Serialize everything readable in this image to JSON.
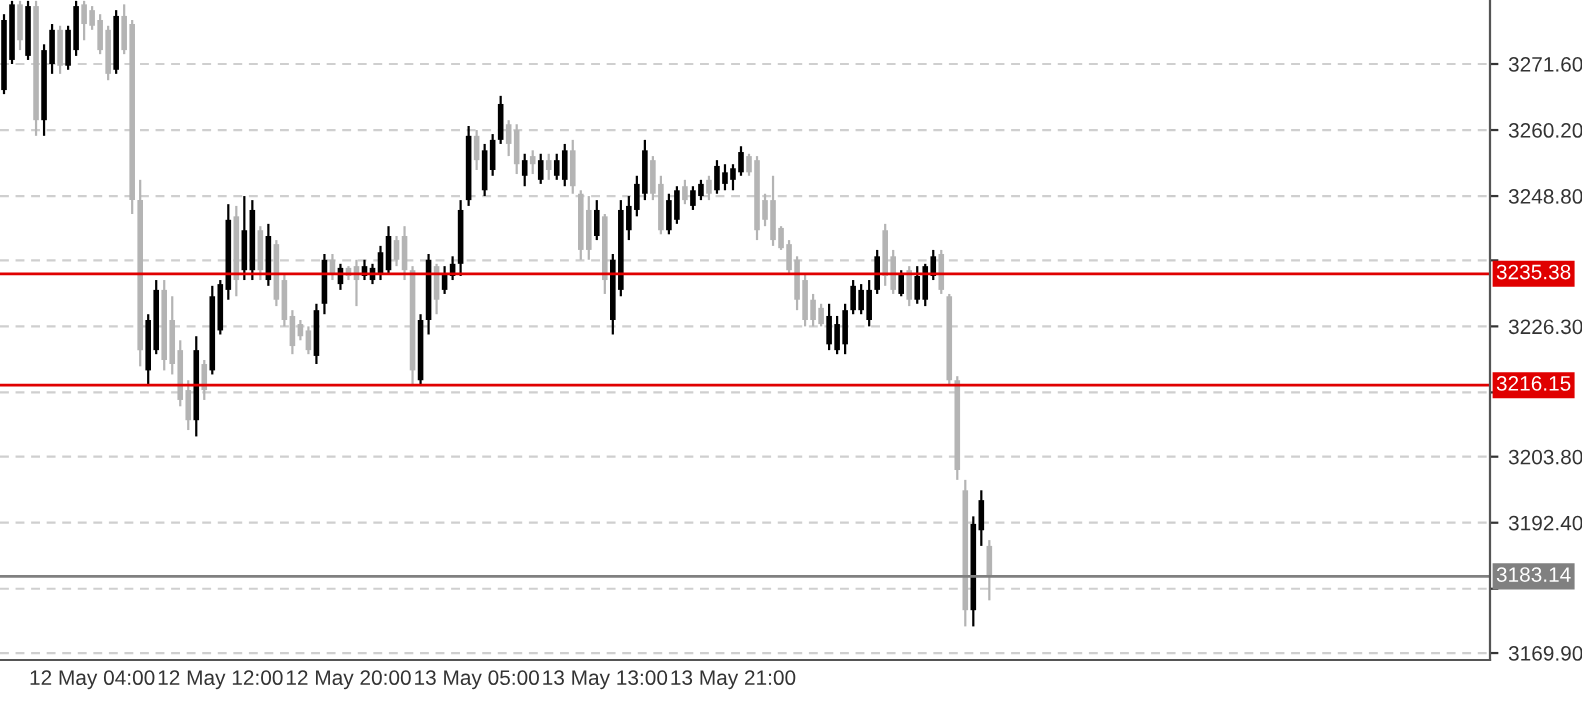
{
  "chart_data": {
    "type": "candlestick",
    "categories": [
      null,
      null,
      null,
      null,
      null,
      null,
      null,
      null,
      null,
      null,
      null,
      "12 May 04:00",
      null,
      null,
      null,
      null,
      null,
      null,
      null,
      null,
      null,
      null,
      null,
      null,
      null,
      null,
      null,
      "12 May 12:00",
      null,
      null,
      null,
      null,
      null,
      null,
      null,
      null,
      null,
      null,
      null,
      null,
      null,
      null,
      null,
      "12 May 20:00",
      null,
      null,
      null,
      null,
      null,
      null,
      null,
      null,
      null,
      null,
      null,
      null,
      null,
      null,
      null,
      "13 May 05:00",
      null,
      null,
      null,
      null,
      null,
      null,
      null,
      null,
      null,
      null,
      null,
      null,
      null,
      null,
      null,
      "13 May 13:00",
      null,
      null,
      null,
      null,
      null,
      null,
      null,
      null,
      null,
      null,
      null,
      null,
      null,
      null,
      null,
      "13 May 21:00",
      null,
      null,
      null,
      null,
      null,
      null,
      null,
      null,
      null,
      null,
      null,
      null,
      null,
      null,
      null,
      null,
      null,
      null,
      null,
      null,
      null,
      null,
      null,
      null,
      null,
      null,
      null,
      null,
      null,
      null,
      null,
      null,
      null,
      null,
      null,
      null,
      null,
      null,
      null,
      null,
      null,
      null,
      null,
      null,
      null,
      null,
      null,
      null,
      null,
      null,
      null,
      null,
      null,
      null,
      null,
      null,
      null,
      null,
      null,
      null,
      null,
      null,
      null,
      null,
      null,
      null,
      null,
      null,
      null,
      null,
      null,
      null,
      null,
      null,
      null,
      null,
      null,
      null,
      null,
      null,
      null,
      null,
      null,
      null,
      null,
      null,
      null,
      null,
      null,
      null,
      null,
      null,
      null,
      null
    ],
    "ohlc": [
      [
        3267.1,
        3280.2,
        3266.4,
        3279.2
      ],
      [
        3272.3,
        3282.5,
        3271.6,
        3281.9
      ],
      [
        3281.9,
        3282.5,
        3274.0,
        3275.7
      ],
      [
        3273.0,
        3282.5,
        3272.3,
        3281.6
      ],
      [
        3281.6,
        3282.5,
        3259.2,
        3261.9
      ],
      [
        3261.9,
        3275.0,
        3259.2,
        3274.0
      ],
      [
        3271.6,
        3278.5,
        3269.9,
        3277.5
      ],
      [
        3277.5,
        3278.2,
        3269.9,
        3271.3
      ],
      [
        3271.3,
        3278.2,
        3270.6,
        3277.5
      ],
      [
        3274.0,
        3282.5,
        3273.0,
        3281.6
      ],
      [
        3281.9,
        3282.5,
        3275.7,
        3278.5
      ],
      [
        3280.9,
        3281.6,
        3277.5,
        3278.2
      ],
      [
        3279.2,
        3280.2,
        3273.3,
        3274.0
      ],
      [
        3277.5,
        3278.2,
        3268.8,
        3269.9
      ],
      [
        3270.6,
        3280.9,
        3269.9,
        3279.9
      ],
      [
        3279.9,
        3281.9,
        3273.3,
        3274.0
      ],
      [
        3278.5,
        3279.2,
        3245.7,
        3248.1
      ],
      [
        3248.1,
        3251.6,
        3219.4,
        3222.2
      ],
      [
        3218.7,
        3228.4,
        3216.0,
        3227.4
      ],
      [
        3222.2,
        3234.3,
        3221.5,
        3232.6
      ],
      [
        3232.6,
        3234.3,
        3218.7,
        3220.5
      ],
      [
        3227.4,
        3231.5,
        3218.0,
        3219.8
      ],
      [
        3222.2,
        3223.9,
        3212.5,
        3213.6
      ],
      [
        3215.3,
        3217.0,
        3208.4,
        3210.1
      ],
      [
        3210.1,
        3224.6,
        3207.3,
        3222.2
      ],
      [
        3219.8,
        3220.5,
        3213.6,
        3215.3
      ],
      [
        3218.7,
        3233.3,
        3218.0,
        3231.5
      ],
      [
        3225.6,
        3234.3,
        3224.9,
        3233.6
      ],
      [
        3232.6,
        3247.4,
        3230.9,
        3244.7
      ],
      [
        3245.3,
        3247.1,
        3231.5,
        3234.3
      ],
      [
        3236.0,
        3248.8,
        3234.3,
        3242.9
      ],
      [
        3236.0,
        3248.1,
        3234.3,
        3246.4
      ],
      [
        3242.9,
        3243.6,
        3234.3,
        3236.0
      ],
      [
        3234.3,
        3244.0,
        3233.3,
        3241.9
      ],
      [
        3240.5,
        3241.2,
        3229.8,
        3230.9
      ],
      [
        3234.3,
        3235.3,
        3226.3,
        3227.4
      ],
      [
        3228.1,
        3229.1,
        3221.5,
        3222.9
      ],
      [
        3226.7,
        3227.4,
        3223.9,
        3224.6
      ],
      [
        3225.6,
        3226.3,
        3221.5,
        3222.2
      ],
      [
        3221.2,
        3230.2,
        3219.8,
        3229.1
      ],
      [
        3230.2,
        3238.8,
        3228.4,
        3237.8
      ],
      [
        3237.8,
        3238.8,
        3234.3,
        3235.3
      ],
      [
        3233.6,
        3237.1,
        3232.6,
        3236.4
      ],
      [
        3236.4,
        3236.7,
        3234.3,
        3235.0
      ],
      [
        3236.7,
        3237.8,
        3229.8,
        3234.3
      ],
      [
        3235.0,
        3237.8,
        3234.3,
        3236.7
      ],
      [
        3234.3,
        3237.1,
        3233.6,
        3236.4
      ],
      [
        3235.3,
        3240.2,
        3234.3,
        3239.1
      ],
      [
        3236.0,
        3243.6,
        3235.3,
        3241.9
      ],
      [
        3241.2,
        3241.9,
        3236.7,
        3237.8
      ],
      [
        3241.9,
        3243.6,
        3234.3,
        3236.0
      ],
      [
        3236.0,
        3236.7,
        3216.0,
        3218.7
      ],
      [
        3217.0,
        3228.4,
        3216.0,
        3227.4
      ],
      [
        3227.4,
        3238.8,
        3224.9,
        3237.8
      ],
      [
        3236.7,
        3237.1,
        3228.4,
        3230.9
      ],
      [
        3232.6,
        3236.7,
        3231.9,
        3235.3
      ],
      [
        3235.0,
        3238.4,
        3234.3,
        3237.1
      ],
      [
        3237.1,
        3248.1,
        3235.0,
        3246.4
      ],
      [
        3248.1,
        3260.9,
        3247.1,
        3259.2
      ],
      [
        3259.2,
        3260.2,
        3253.3,
        3255.0
      ],
      [
        3249.8,
        3257.8,
        3248.8,
        3256.7
      ],
      [
        3253.3,
        3259.5,
        3252.3,
        3258.5
      ],
      [
        3258.5,
        3266.1,
        3257.8,
        3264.7
      ],
      [
        3261.2,
        3261.9,
        3255.7,
        3257.8
      ],
      [
        3260.2,
        3261.2,
        3252.6,
        3254.3
      ],
      [
        3252.3,
        3256.1,
        3250.5,
        3255.0
      ],
      [
        3255.7,
        3256.7,
        3252.6,
        3254.3
      ],
      [
        3251.6,
        3256.1,
        3250.9,
        3255.0
      ],
      [
        3255.0,
        3256.1,
        3251.6,
        3253.3
      ],
      [
        3252.3,
        3256.1,
        3251.6,
        3255.0
      ],
      [
        3251.6,
        3257.8,
        3250.5,
        3256.7
      ],
      [
        3256.7,
        3258.5,
        3249.2,
        3250.5
      ],
      [
        3249.2,
        3249.8,
        3237.8,
        3239.5
      ],
      [
        3246.4,
        3248.8,
        3237.8,
        3239.5
      ],
      [
        3241.9,
        3248.1,
        3241.2,
        3246.4
      ],
      [
        3245.3,
        3245.7,
        3231.9,
        3234.3
      ],
      [
        3227.4,
        3238.8,
        3224.9,
        3237.8
      ],
      [
        3232.6,
        3248.1,
        3231.5,
        3246.4
      ],
      [
        3242.9,
        3248.8,
        3241.2,
        3247.1
      ],
      [
        3246.4,
        3252.3,
        3245.3,
        3250.9
      ],
      [
        3249.2,
        3258.5,
        3248.1,
        3256.7
      ],
      [
        3255.0,
        3255.7,
        3248.1,
        3249.2
      ],
      [
        3250.9,
        3252.3,
        3242.2,
        3242.9
      ],
      [
        3242.9,
        3249.2,
        3242.2,
        3248.1
      ],
      [
        3244.7,
        3250.5,
        3244.0,
        3249.8
      ],
      [
        3250.5,
        3251.6,
        3247.4,
        3248.1
      ],
      [
        3247.1,
        3250.5,
        3246.4,
        3249.8
      ],
      [
        3248.8,
        3251.6,
        3248.1,
        3250.9
      ],
      [
        3251.6,
        3252.3,
        3248.1,
        3249.2
      ],
      [
        3249.8,
        3255.0,
        3249.2,
        3254.0
      ],
      [
        3250.9,
        3254.3,
        3249.8,
        3252.9
      ],
      [
        3251.6,
        3254.3,
        3249.8,
        3253.6
      ],
      [
        3252.9,
        3257.4,
        3252.3,
        3256.4
      ],
      [
        3255.7,
        3256.1,
        3252.3,
        3252.9
      ],
      [
        3255.0,
        3255.7,
        3241.2,
        3242.9
      ],
      [
        3248.1,
        3249.2,
        3243.6,
        3244.7
      ],
      [
        3248.1,
        3252.3,
        3240.2,
        3241.2
      ],
      [
        3243.3,
        3243.6,
        3239.5,
        3239.8
      ],
      [
        3240.5,
        3241.2,
        3235.3,
        3236.0
      ],
      [
        3237.8,
        3238.4,
        3229.1,
        3230.9
      ],
      [
        3234.3,
        3235.3,
        3226.3,
        3227.4
      ],
      [
        3230.9,
        3231.9,
        3226.3,
        3227.4
      ],
      [
        3229.5,
        3230.2,
        3226.3,
        3226.7
      ],
      [
        3223.2,
        3230.2,
        3222.2,
        3228.1
      ],
      [
        3222.2,
        3228.1,
        3221.5,
        3226.7
      ],
      [
        3223.2,
        3230.2,
        3221.5,
        3229.1
      ],
      [
        3229.1,
        3234.3,
        3228.4,
        3233.3
      ],
      [
        3229.1,
        3233.6,
        3228.4,
        3232.6
      ],
      [
        3227.4,
        3234.3,
        3226.3,
        3232.6
      ],
      [
        3232.6,
        3239.5,
        3231.9,
        3238.4
      ],
      [
        3242.9,
        3244.0,
        3233.3,
        3235.0
      ],
      [
        3238.4,
        3239.5,
        3231.9,
        3232.6
      ],
      [
        3231.9,
        3236.0,
        3231.5,
        3235.3
      ],
      [
        3236.0,
        3236.7,
        3229.8,
        3230.9
      ],
      [
        3230.9,
        3236.7,
        3230.2,
        3235.0
      ],
      [
        3230.9,
        3237.1,
        3229.8,
        3236.7
      ],
      [
        3235.0,
        3239.5,
        3234.3,
        3238.4
      ],
      [
        3238.8,
        3239.5,
        3231.9,
        3232.6
      ],
      [
        3231.5,
        3231.9,
        3216.0,
        3217.0
      ],
      [
        3217.0,
        3217.7,
        3199.8,
        3201.5
      ],
      [
        3198.0,
        3199.8,
        3174.5,
        3177.3
      ],
      [
        3177.3,
        3193.5,
        3174.5,
        3192.2
      ],
      [
        3191.1,
        3198.0,
        3188.4,
        3196.3
      ],
      [
        3188.4,
        3189.4,
        3179.0,
        3183.1
      ],
      null,
      null,
      null,
      null,
      null,
      null,
      null,
      null,
      null,
      null,
      null,
      null,
      null,
      null,
      null,
      null,
      null,
      null,
      null,
      null,
      null,
      null,
      null,
      null,
      null,
      null,
      null,
      null,
      null,
      null,
      null,
      null,
      null,
      null,
      null,
      null,
      null,
      null,
      null,
      null,
      null,
      null,
      null,
      null,
      null,
      null,
      null,
      null,
      null,
      null,
      null,
      null,
      null,
      null,
      null,
      null,
      null,
      null,
      null,
      null,
      null,
      null
    ],
    "colors": [
      "#000000",
      "#000000",
      "#b4b4b4",
      "#000000",
      "#b4b4b4",
      "#000000",
      "#000000",
      "#b4b4b4",
      "#000000",
      "#000000",
      "#b4b4b4",
      "#b4b4b4",
      "#b4b4b4",
      "#b4b4b4",
      "#000000",
      "#b4b4b4",
      "#b4b4b4",
      "#b4b4b4",
      "#000000",
      "#000000",
      "#b4b4b4",
      "#b4b4b4",
      "#b4b4b4",
      "#b4b4b4",
      "#000000",
      "#b4b4b4",
      "#000000",
      "#000000",
      "#000000",
      "#b4b4b4",
      "#000000",
      "#000000",
      "#b4b4b4",
      "#000000",
      "#b4b4b4",
      "#b4b4b4",
      "#b4b4b4",
      "#b4b4b4",
      "#b4b4b4",
      "#000000",
      "#000000",
      "#b4b4b4",
      "#000000",
      "#b4b4b4",
      "#b4b4b4",
      "#000000",
      "#000000",
      "#000000",
      "#000000",
      "#b4b4b4",
      "#b4b4b4",
      "#b4b4b4",
      "#000000",
      "#000000",
      "#b4b4b4",
      "#000000",
      "#000000",
      "#000000",
      "#000000",
      "#b4b4b4",
      "#000000",
      "#000000",
      "#000000",
      "#b4b4b4",
      "#b4b4b4",
      "#000000",
      "#b4b4b4",
      "#000000",
      "#b4b4b4",
      "#000000",
      "#000000",
      "#b4b4b4",
      "#b4b4b4",
      "#b4b4b4",
      "#000000",
      "#b4b4b4",
      "#000000",
      "#000000",
      "#000000",
      "#000000",
      "#000000",
      "#b4b4b4",
      "#b4b4b4",
      "#000000",
      "#000000",
      "#b4b4b4",
      "#000000",
      "#000000",
      "#b4b4b4",
      "#000000",
      "#000000",
      "#000000",
      "#000000",
      "#b4b4b4",
      "#b4b4b4",
      "#b4b4b4",
      "#b4b4b4",
      "#b4b4b4",
      "#b4b4b4",
      "#b4b4b4",
      "#b4b4b4",
      "#b4b4b4",
      "#b4b4b4",
      "#000000",
      "#000000",
      "#000000",
      "#000000",
      "#000000",
      "#000000",
      "#000000",
      "#b4b4b4",
      "#b4b4b4",
      "#000000",
      "#b4b4b4",
      "#000000",
      "#000000",
      "#000000",
      "#b4b4b4",
      "#b4b4b4",
      "#b4b4b4",
      "#b4b4b4",
      "#000000",
      "#000000",
      "#b4b4b4",
      null,
      null,
      null,
      null,
      null,
      null,
      null,
      null,
      null,
      null,
      null,
      null,
      null,
      null,
      null,
      null,
      null,
      null,
      null,
      null,
      null,
      null,
      null,
      null,
      null,
      null,
      null,
      null,
      null,
      null,
      null,
      null,
      null,
      null,
      null,
      null,
      null,
      null,
      null,
      null,
      null,
      null,
      null,
      null,
      null,
      null,
      null,
      null,
      null,
      null,
      null,
      null,
      null,
      null,
      null,
      null,
      null,
      null,
      null,
      null,
      null,
      null
    ],
    "ylim": [
      3168.7,
      3282.65
    ],
    "yticks": [
      {
        "value": 3271.6,
        "label": "3271.60"
      },
      {
        "value": 3260.2,
        "label": "3260.20"
      },
      {
        "value": 3248.8,
        "label": "3248.80"
      },
      {
        "value": 3237.7,
        "label": null
      },
      {
        "value": 3226.3,
        "label": "3226.30"
      },
      {
        "value": 3214.9,
        "label": null
      },
      {
        "value": 3203.8,
        "label": "3203.80"
      },
      {
        "value": 3192.4,
        "label": "3192.40"
      },
      {
        "value": 3181.0,
        "label": null
      },
      {
        "value": 3169.9,
        "label": "3169.90"
      }
    ],
    "ref_lines": [
      {
        "axis": "y",
        "value": 3235.38,
        "label": "3235.38",
        "color": "#e00000"
      },
      {
        "axis": "y",
        "value": 3216.15,
        "label": "3216.15",
        "color": "#e00000"
      },
      {
        "axis": "y",
        "value": 3183.14,
        "label": "3183.14",
        "color": "#808080"
      }
    ],
    "grid": true
  }
}
